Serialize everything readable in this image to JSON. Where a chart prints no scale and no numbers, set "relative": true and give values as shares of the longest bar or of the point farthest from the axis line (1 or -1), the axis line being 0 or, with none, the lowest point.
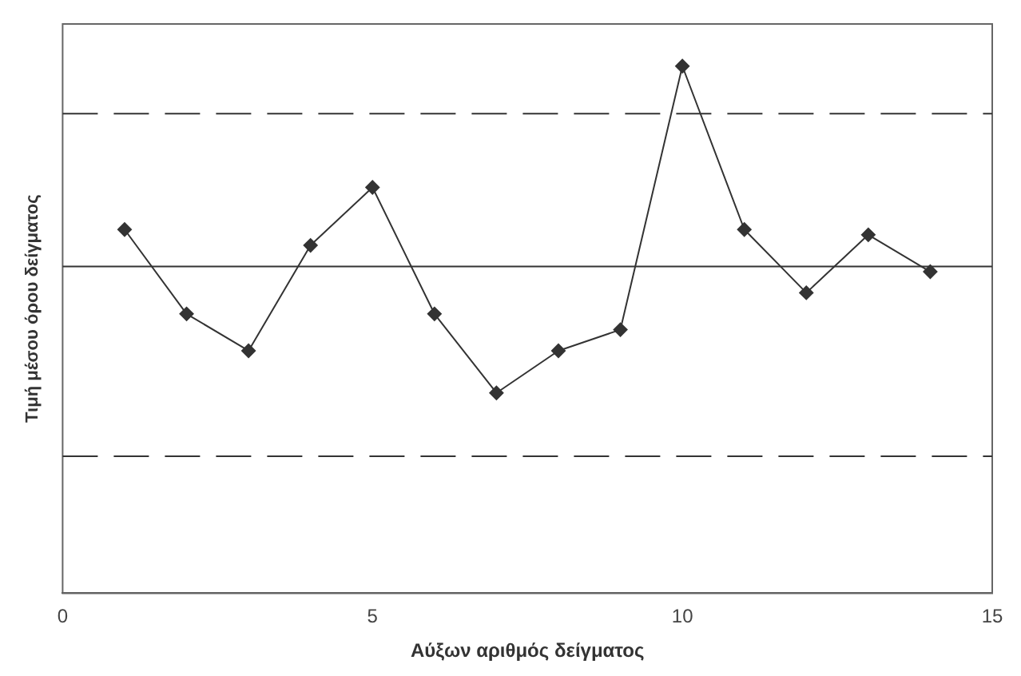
{
  "chart_data": {
    "type": "line",
    "xlabel": "Αύξων αριθμός δείγματος",
    "ylabel": "Τιμή μέσου όρου δείγματος",
    "relative": true,
    "x": [
      1,
      2,
      3,
      4,
      5,
      6,
      7,
      8,
      9,
      10,
      11,
      12,
      13,
      14
    ],
    "xlim": [
      0,
      15
    ],
    "xticks": [
      0,
      5,
      10,
      15
    ],
    "series": [
      {
        "color": "#333333",
        "values": [
          0.69,
          0.53,
          0.46,
          0.66,
          0.77,
          0.53,
          0.38,
          0.46,
          0.5,
          1,
          0.69,
          0.57,
          0.68,
          0.61
        ]
      }
    ],
    "ref_lines": [
      {
        "axis": "y",
        "value": 0.91,
        "color": "#333333",
        "line_style": "dashed"
      },
      {
        "axis": "y",
        "value": 0.62,
        "color": "#333333",
        "line_style": "solid"
      },
      {
        "axis": "y",
        "value": 0.26,
        "color": "#333333",
        "line_style": "dashed"
      }
    ],
    "marker": "diamond",
    "line_style": "solid",
    "grid": false,
    "legend": false
  }
}
